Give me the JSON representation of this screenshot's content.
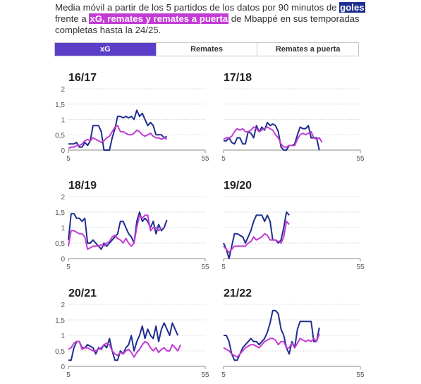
{
  "description": {
    "part1": "Media móvil a partir de los 5 partidos de los datos por 90 minutos de ",
    "goles": "goles",
    "part2": " frente a ",
    "series2": "xG, remates y remates a puerta",
    "part3": " de Mbappé en sus temporadas completas hasta la 24/25."
  },
  "tabs": [
    {
      "label": "xG",
      "active": true
    },
    {
      "label": "Remates",
      "active": false
    },
    {
      "label": "Remates a puerta",
      "active": false
    }
  ],
  "colors": {
    "goles": "#1f2e8f",
    "xg": "#c23bd4",
    "tab_active": "#5b3fc9",
    "grid": "#d9d9d9"
  },
  "chart_data": [
    {
      "type": "line",
      "title": "16/17",
      "xlim": [
        5,
        55
      ],
      "ylim": [
        0,
        2
      ],
      "x_ticks": [
        "5",
        "55"
      ],
      "y_ticks": [
        "0",
        "0,5",
        "1",
        "1,5",
        "2"
      ],
      "x_start": 5,
      "series": [
        {
          "name": "goles",
          "values": [
            0.2,
            0.2,
            0.2,
            0.25,
            0.1,
            0.1,
            0.25,
            0.15,
            0.3,
            0.8,
            0.8,
            0.8,
            0.6,
            0.0,
            0.0,
            0.0,
            0.4,
            0.7,
            1.1,
            1.1,
            1.05,
            1.1,
            1.05,
            1.1,
            1.0,
            1.3,
            1.1,
            1.2,
            1.0,
            0.8,
            0.9,
            0.8,
            0.5,
            0.5,
            0.5,
            0.4,
            0.45
          ]
        },
        {
          "name": "xG",
          "values": [
            0.05,
            0.1,
            0.1,
            0.15,
            0.15,
            0.2,
            0.3,
            0.35,
            0.3,
            0.4,
            0.35,
            0.3,
            0.25,
            0.3,
            0.4,
            0.45,
            0.6,
            0.75,
            0.8,
            0.6,
            0.6,
            0.55,
            0.5,
            0.5,
            0.55,
            0.65,
            0.6,
            0.5,
            0.45,
            0.5,
            0.55,
            0.45,
            0.4,
            0.4,
            0.35,
            0.4,
            0.35
          ]
        }
      ]
    },
    {
      "type": "line",
      "title": "17/18",
      "xlim": [
        5,
        55
      ],
      "ylim": [
        0,
        2
      ],
      "x_ticks": [
        "5",
        "55"
      ],
      "y_ticks": [],
      "x_start": 5,
      "series": [
        {
          "name": "goles",
          "values": [
            0.3,
            0.3,
            0.4,
            0.25,
            0.2,
            0.4,
            0.4,
            0.2,
            0.2,
            0.6,
            0.55,
            0.4,
            0.8,
            0.6,
            0.75,
            0.65,
            0.9,
            0.8,
            0.85,
            0.8,
            0.6,
            0.1,
            0.0,
            0.0,
            0.15,
            0.15,
            0.2,
            0.5,
            0.75,
            0.7,
            0.7,
            0.8,
            0.4,
            0.4,
            0.4,
            0.0
          ]
        },
        {
          "name": "xG",
          "values": [
            0.35,
            0.4,
            0.4,
            0.45,
            0.6,
            0.7,
            0.65,
            0.7,
            0.6,
            0.6,
            0.65,
            0.75,
            0.7,
            0.6,
            0.65,
            0.7,
            0.75,
            0.7,
            0.65,
            0.5,
            0.4,
            0.2,
            0.1,
            0.1,
            0.15,
            0.15,
            0.15,
            0.35,
            0.5,
            0.55,
            0.5,
            0.55,
            0.6,
            0.4,
            0.35,
            0.4,
            0.25
          ]
        }
      ]
    },
    {
      "type": "line",
      "title": "18/19",
      "xlim": [
        5,
        55
      ],
      "ylim": [
        0,
        2
      ],
      "x_ticks": [
        "5",
        "55"
      ],
      "y_ticks": [
        "0",
        "0,5",
        "1",
        "1,5",
        "2"
      ],
      "x_start": 5,
      "series": [
        {
          "name": "goles",
          "values": [
            0.6,
            1.45,
            1.45,
            1.3,
            1.3,
            1.2,
            1.3,
            0.5,
            0.5,
            0.6,
            0.5,
            0.4,
            0.3,
            0.5,
            0.4,
            0.5,
            0.6,
            0.7,
            0.8,
            1.2,
            1.2,
            1.0,
            0.8,
            0.7,
            0.5,
            1.2,
            1.5,
            1.2,
            1.3,
            1.2,
            1.0,
            1.2,
            0.8,
            1.1,
            0.9,
            1.0,
            1.25
          ]
        },
        {
          "name": "xG",
          "values": [
            0.4,
            0.9,
            0.9,
            0.85,
            0.8,
            0.8,
            0.7,
            0.3,
            0.35,
            0.4,
            0.4,
            0.4,
            0.45,
            0.4,
            0.5,
            0.55,
            0.7,
            0.75,
            0.65,
            0.6,
            0.5,
            0.65,
            0.5,
            0.4,
            0.5,
            1.0,
            1.4,
            1.3,
            1.4,
            1.4,
            0.9,
            1.0,
            1.0,
            0.9,
            1.0
          ]
        }
      ]
    },
    {
      "type": "line",
      "title": "19/20",
      "xlim": [
        5,
        55
      ],
      "ylim": [
        0,
        2
      ],
      "x_ticks": [
        "5",
        "55"
      ],
      "y_ticks": [],
      "x_start": 5,
      "series": [
        {
          "name": "goles",
          "values": [
            0.5,
            0.3,
            0.0,
            0.4,
            0.8,
            0.8,
            0.75,
            0.7,
            0.5,
            0.7,
            0.9,
            1.2,
            1.4,
            1.4,
            1.4,
            1.2,
            1.4,
            1.2,
            0.6,
            0.6,
            0.5,
            0.6,
            1.0,
            1.5,
            1.4
          ]
        },
        {
          "name": "xG",
          "values": [
            0.4,
            0.3,
            0.2,
            0.3,
            0.4,
            0.4,
            0.4,
            0.4,
            0.4,
            0.5,
            0.55,
            0.7,
            0.6,
            0.65,
            0.7,
            0.8,
            0.75,
            0.6,
            0.6,
            0.6,
            0.55,
            0.5,
            0.7,
            1.2,
            1.1
          ]
        }
      ]
    },
    {
      "type": "line",
      "title": "20/21",
      "xlim": [
        5,
        55
      ],
      "ylim": [
        0,
        2
      ],
      "x_ticks": [
        "5",
        "55"
      ],
      "y_ticks": [
        "0",
        "0,5",
        "1",
        "1,5",
        "2"
      ],
      "x_start": 5,
      "series": [
        {
          "name": "goles",
          "values": [
            0.2,
            0.2,
            0.6,
            0.8,
            0.8,
            0.6,
            0.6,
            0.7,
            0.65,
            0.6,
            0.4,
            0.6,
            0.55,
            0.7,
            0.6,
            0.9,
            0.5,
            0.2,
            0.2,
            0.5,
            0.4,
            0.6,
            0.7,
            1.0,
            0.5,
            0.8,
            1.0,
            1.3,
            0.9,
            1.2,
            1.0,
            0.9,
            1.3,
            0.8,
            1.2,
            1.4,
            1.2,
            1.0,
            1.4,
            1.2,
            1.0
          ]
        },
        {
          "name": "xG",
          "values": [
            0.55,
            0.6,
            0.75,
            0.8,
            0.8,
            0.55,
            0.6,
            0.6,
            0.55,
            0.5,
            0.5,
            0.55,
            0.6,
            0.7,
            0.75,
            0.7,
            0.5,
            0.4,
            0.35,
            0.45,
            0.4,
            0.5,
            0.55,
            0.45,
            0.3,
            0.45,
            0.55,
            0.7,
            0.8,
            0.75,
            0.6,
            0.5,
            0.6,
            0.45,
            0.55,
            0.6,
            0.5,
            0.5,
            0.7,
            0.6,
            0.5,
            0.7
          ]
        }
      ]
    },
    {
      "type": "line",
      "title": "21/22",
      "xlim": [
        5,
        55
      ],
      "ylim": [
        0,
        2
      ],
      "x_ticks": [
        "5",
        "55"
      ],
      "y_ticks": [],
      "x_start": 5,
      "series": [
        {
          "name": "goles",
          "values": [
            1.0,
            1.0,
            0.8,
            0.4,
            0.2,
            0.2,
            0.4,
            0.6,
            0.7,
            0.8,
            0.9,
            0.8,
            0.8,
            0.7,
            0.8,
            0.9,
            1.1,
            1.4,
            1.8,
            1.8,
            1.7,
            1.2,
            1.0,
            0.6,
            0.4,
            0.8,
            0.6,
            1.2,
            1.45,
            1.45,
            1.45,
            1.45,
            1.45,
            0.8,
            0.8,
            1.25
          ]
        },
        {
          "name": "xG",
          "values": [
            0.6,
            0.55,
            0.5,
            0.4,
            0.35,
            0.3,
            0.4,
            0.5,
            0.6,
            0.65,
            0.7,
            0.7,
            0.65,
            0.6,
            0.7,
            0.8,
            0.85,
            0.9,
            0.9,
            0.85,
            0.7,
            0.8,
            0.8,
            0.6,
            0.6,
            0.75,
            0.6,
            0.75,
            0.9,
            0.85,
            0.8,
            0.85,
            0.8,
            0.9,
            0.8,
            1.05
          ]
        }
      ]
    }
  ]
}
